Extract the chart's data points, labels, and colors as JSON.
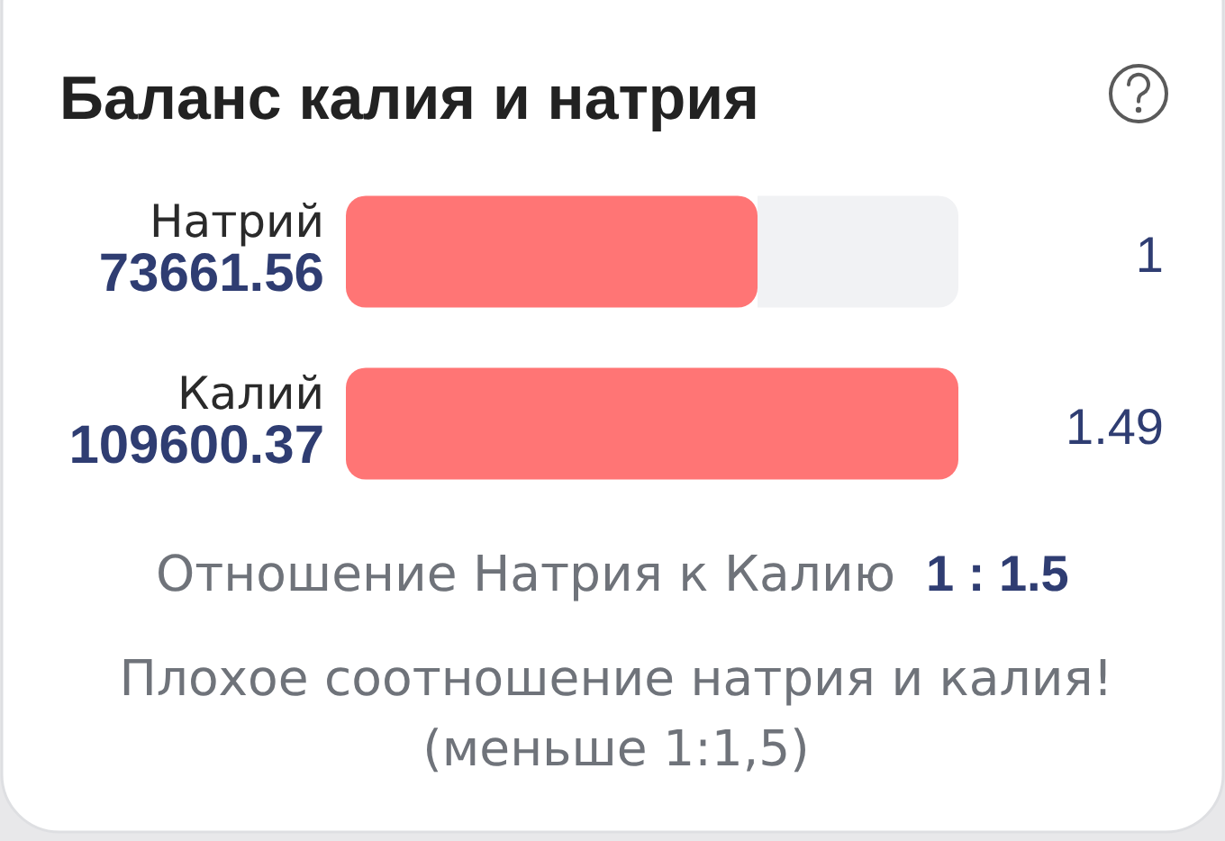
{
  "chart_data": {
    "type": "bar",
    "orientation": "horizontal",
    "title": "Баланс калия и натрия",
    "categories": [
      "Натрий",
      "Калий"
    ],
    "values": [
      73661.56,
      109600.37
    ],
    "color": "#ff7575",
    "data_labels": true,
    "annotations": [
      "1",
      "1.49",
      "Отношение Натрия к Калию",
      "1 : 1.5",
      "Плохое соотношение натрия и калия!",
      "(меньше 1:1,5)"
    ]
  }
}
